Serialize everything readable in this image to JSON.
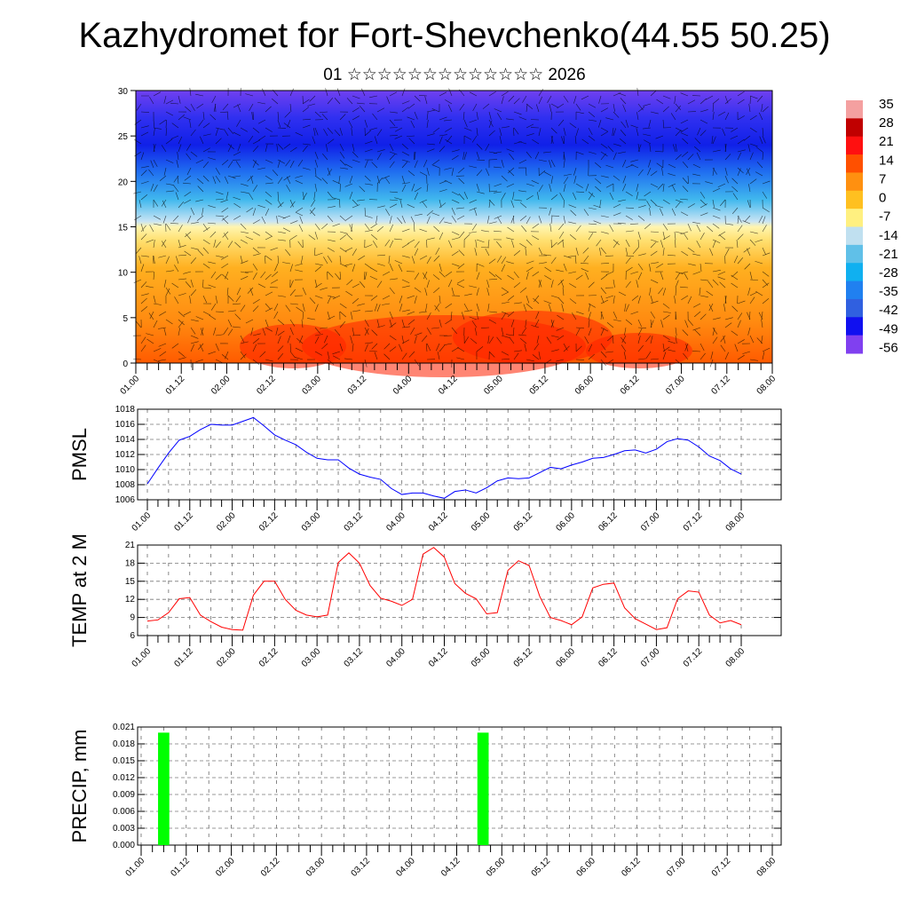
{
  "title": "Kazhydromet for Fort-Shevchenko(44.55 50.25)",
  "subtitle": "01 ☆☆☆☆☆☆☆☆☆☆☆☆☆ 2026",
  "x_tick_labels": [
    "01.00",
    "01.12",
    "02.00",
    "02.12",
    "03.00",
    "03.12",
    "04.00",
    "04.12",
    "05.00",
    "05.12",
    "06.00",
    "06.12",
    "07.00",
    "07.12",
    "08.00"
  ],
  "chart_data": [
    {
      "type": "heatmap",
      "name": "temperature-wind cross-section",
      "xlabel": "",
      "ylabel": "",
      "yticks": [
        0,
        5,
        10,
        15,
        20,
        25,
        30
      ],
      "ylim": [
        0,
        30
      ],
      "colorbar": {
        "labels": [
          "35",
          "28",
          "21",
          "14",
          "7",
          "0",
          "-7",
          "-14",
          "-21",
          "-28",
          "-35",
          "-42",
          "-49",
          "-56"
        ],
        "colors": [
          "#f4a0a0",
          "#c00000",
          "#ff1010",
          "#ff5000",
          "#ff9010",
          "#ffc020",
          "#fff080",
          "#c0e0f0",
          "#60c0e8",
          "#10b0f0",
          "#2080f0",
          "#3060e0",
          "#1010f0",
          "#8040f0"
        ]
      }
    },
    {
      "type": "line",
      "ylabel": "PMSL",
      "ylim": [
        1006,
        1018
      ],
      "yticks": [
        1006,
        1008,
        1010,
        1012,
        1014,
        1016,
        1018
      ],
      "color": "#0000ff",
      "step_hours": 3,
      "values": [
        1008.1,
        1010.2,
        1012.2,
        1013.9,
        1014.4,
        1015.3,
        1016.0,
        1015.9,
        1015.9,
        1016.4,
        1016.9,
        1015.8,
        1014.6,
        1013.9,
        1013.3,
        1012.3,
        1011.5,
        1011.3,
        1011.3,
        1010.2,
        1009.4,
        1009.0,
        1008.7,
        1007.5,
        1006.7,
        1006.9,
        1006.9,
        1006.5,
        1006.2,
        1007.1,
        1007.3,
        1006.9,
        1007.6,
        1008.5,
        1008.9,
        1008.8,
        1008.9,
        1009.6,
        1010.3,
        1010.1,
        1010.6,
        1011.0,
        1011.5,
        1011.6,
        1012.0,
        1012.5,
        1012.6,
        1012.2,
        1012.7,
        1013.7,
        1014.1,
        1013.9,
        1013.0,
        1011.8,
        1011.2,
        1010.1,
        1009.4
      ]
    },
    {
      "type": "line",
      "ylabel": "TEMP at 2 M",
      "ylim": [
        6,
        21
      ],
      "yticks": [
        6,
        9,
        12,
        15,
        18,
        21
      ],
      "color": "#ff0000",
      "step_hours": 3,
      "values": [
        8.4,
        8.6,
        9.8,
        12.1,
        12.3,
        9.4,
        8.3,
        7.4,
        7.0,
        6.9,
        12.7,
        15.0,
        15.0,
        12.0,
        10.2,
        9.4,
        9.1,
        9.4,
        18.1,
        19.7,
        18.0,
        14.3,
        12.2,
        11.7,
        11.0,
        12.0,
        19.5,
        20.6,
        19.0,
        14.6,
        13.0,
        12.1,
        9.6,
        9.8,
        16.8,
        18.4,
        17.6,
        12.5,
        9.0,
        8.5,
        7.8,
        9.1,
        13.9,
        14.5,
        14.7,
        10.6,
        8.8,
        7.9,
        7.0,
        7.3,
        12.1,
        13.4,
        13.2,
        9.4,
        8.1,
        8.5,
        7.8
      ]
    },
    {
      "type": "bar",
      "ylabel": "PRECIP, mm",
      "ylim": [
        0,
        0.021
      ],
      "yticks": [
        "0.000",
        "0.003",
        "0.006",
        "0.009",
        "0.012",
        "0.015",
        "0.018",
        "0.021"
      ],
      "color": "#00ff00",
      "bars": [
        {
          "hour": 6,
          "value": 0.02
        },
        {
          "hour": 91,
          "value": 0.02
        }
      ]
    }
  ]
}
